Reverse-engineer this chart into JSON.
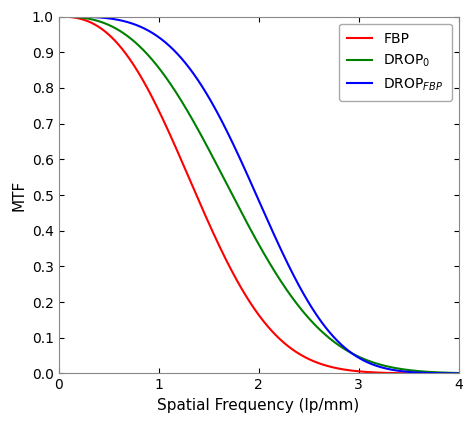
{
  "title": "",
  "xlabel": "Spatial Frequency (lp/mm)",
  "ylabel": "MTF",
  "xlim": [
    0,
    4
  ],
  "ylim": [
    0,
    1
  ],
  "xticks": [
    0,
    1,
    2,
    3,
    4
  ],
  "yticks": [
    0,
    0.1,
    0.2,
    0.3,
    0.4,
    0.5,
    0.6,
    0.7,
    0.8,
    0.9,
    1
  ],
  "fbp_color": "#ff0000",
  "drop0_color": "#008000",
  "dropfbp_color": "#0000ff",
  "line_width": 1.5,
  "fbp_alpha": 0.38,
  "fbp_beta": 1.8,
  "drop0_alpha": 0.3,
  "drop0_beta": 1.6,
  "dropfbp_alpha": 0.22,
  "dropfbp_beta": 1.55,
  "background_color": "#ffffff",
  "legend_loc": "upper right"
}
